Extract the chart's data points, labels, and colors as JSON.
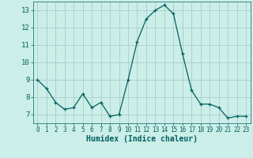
{
  "x": [
    0,
    1,
    2,
    3,
    4,
    5,
    6,
    7,
    8,
    9,
    10,
    11,
    12,
    13,
    14,
    15,
    16,
    17,
    18,
    19,
    20,
    21,
    22,
    23
  ],
  "y": [
    9.0,
    8.5,
    7.7,
    7.3,
    7.4,
    8.2,
    7.4,
    7.7,
    6.9,
    7.0,
    9.0,
    11.2,
    12.5,
    13.0,
    13.3,
    12.8,
    10.5,
    8.4,
    7.6,
    7.6,
    7.4,
    6.8,
    6.9,
    6.9
  ],
  "xlabel": "Humidex (Indice chaleur)",
  "xlim": [
    -0.5,
    23.5
  ],
  "ylim": [
    6.5,
    13.5
  ],
  "yticks": [
    7,
    8,
    9,
    10,
    11,
    12,
    13
  ],
  "xticks": [
    0,
    1,
    2,
    3,
    4,
    5,
    6,
    7,
    8,
    9,
    10,
    11,
    12,
    13,
    14,
    15,
    16,
    17,
    18,
    19,
    20,
    21,
    22,
    23
  ],
  "line_color": "#006060",
  "marker": "+",
  "bg_color": "#cceee8",
  "grid_color": "#aacccc",
  "tick_label_color": "#006060",
  "xlabel_color": "#006060",
  "xtick_fontsize": 5.5,
  "ytick_fontsize": 6.5,
  "xlabel_fontsize": 7.0
}
